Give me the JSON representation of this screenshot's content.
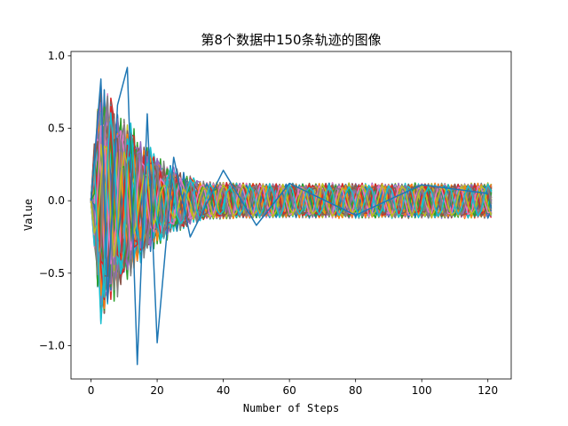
{
  "chart_data": {
    "type": "line",
    "title": "第8个数据中150条轨迹的图像",
    "xlabel": "Number of Steps",
    "ylabel": "Value",
    "xlim": [
      -6.05,
      127.05
    ],
    "ylim": [
      -1.23,
      1.03
    ],
    "xticks": [
      0,
      20,
      40,
      60,
      80,
      100,
      120
    ],
    "xtick_labels": [
      "0",
      "20",
      "40",
      "60",
      "80",
      "100",
      "120"
    ],
    "yticks": [
      -1.0,
      -0.5,
      0.0,
      0.5,
      1.0
    ],
    "ytick_labels": [
      "−1.0",
      "−0.5",
      "0.0",
      "0.5",
      "1.0"
    ],
    "grid": false,
    "legend": "none",
    "series_count": 150,
    "steps_per_series": 121,
    "x_range": [
      0,
      121
    ],
    "amplitude_envelope": {
      "peak_max": 0.92,
      "trough_min": -1.13,
      "transient_end_step": 60,
      "steady_amplitude": 0.11
    },
    "sample_series": [
      {
        "x": [
          0,
          3,
          5,
          8,
          11,
          14,
          17,
          20,
          25,
          30,
          40,
          50,
          60,
          80,
          100,
          120
        ],
        "values": [
          0.0,
          0.84,
          -0.7,
          0.66,
          0.92,
          -1.13,
          0.6,
          -0.98,
          0.3,
          -0.25,
          0.21,
          -0.17,
          0.12,
          -0.1,
          0.11,
          0.05
        ]
      }
    ],
    "colors": [
      "#1f77b4",
      "#ff7f0e",
      "#2ca02c",
      "#d62728",
      "#9467bd",
      "#8c564b",
      "#e377c2",
      "#7f7f7f",
      "#bcbd22",
      "#17becf"
    ]
  }
}
